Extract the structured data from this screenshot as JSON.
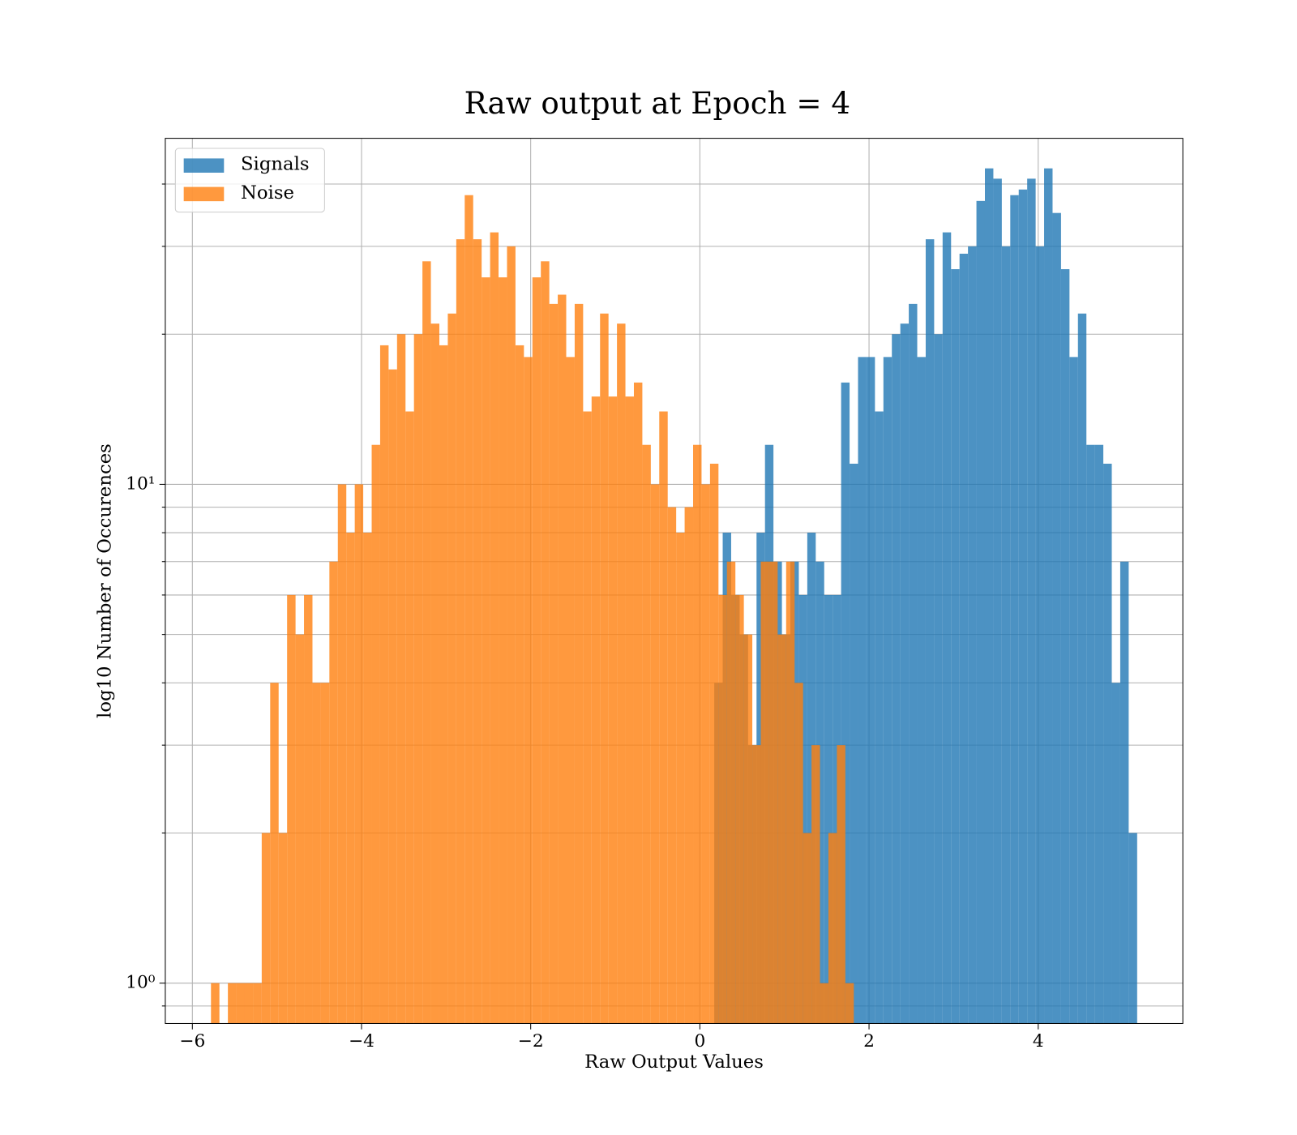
{
  "chart_data": {
    "type": "histogram",
    "title": "Raw output at Epoch = 4",
    "xlabel": "Raw Output Values",
    "ylabel": "log10 Number of Occurences",
    "xlim": [
      -6.32,
      5.71
    ],
    "ylim": [
      0.83,
      49.4
    ],
    "yscale": "log",
    "grid": true,
    "legend": "upper left",
    "xticks": [
      {
        "value": -6,
        "label": "−6"
      },
      {
        "value": -4,
        "label": "−4"
      },
      {
        "value": -2,
        "label": "−2"
      },
      0,
      2,
      4
    ],
    "yticks": [
      {
        "value": 1,
        "label": "10⁰"
      },
      {
        "value": 10,
        "label": "10¹"
      }
    ],
    "yminorticks": [
      0.9,
      2,
      3,
      4,
      5,
      6,
      7,
      8,
      9,
      20,
      30,
      40
    ],
    "series": [
      {
        "name": "Signals",
        "color": "#1f77b4",
        "bins": [
          0.17,
          0.27,
          0.37,
          0.47,
          0.57,
          0.67,
          0.77,
          0.87,
          0.97,
          1.07,
          1.17,
          1.27,
          1.37,
          1.47,
          1.57,
          1.67,
          1.77,
          1.87,
          1.97,
          2.07,
          2.17,
          2.27,
          2.37,
          2.47,
          2.57,
          2.67,
          2.77,
          2.87,
          2.97,
          3.07,
          3.17,
          3.27,
          3.37,
          3.47,
          3.57,
          3.67,
          3.77,
          3.87,
          3.97,
          4.07,
          4.17,
          4.27,
          4.37,
          4.47,
          4.57,
          4.67,
          4.77,
          4.87,
          4.97,
          5.07,
          5.17
        ],
        "values": [
          4,
          8,
          6,
          5,
          3,
          8,
          12,
          7,
          5,
          7,
          6,
          8,
          7,
          6,
          6,
          16,
          11,
          18,
          18,
          14,
          18,
          20,
          21,
          23,
          18,
          31,
          20,
          32,
          27,
          29,
          30,
          37,
          43,
          41,
          30,
          38,
          39,
          41,
          30,
          43,
          35,
          27,
          18,
          22,
          12,
          12,
          11,
          4,
          7,
          2
        ]
      },
      {
        "name": "Noise",
        "color": "#ff7f0e",
        "bins": [
          -5.78,
          -5.68,
          -5.58,
          -5.48,
          -5.38,
          -5.28,
          -5.18,
          -5.08,
          -4.98,
          -4.88,
          -4.78,
          -4.68,
          -4.58,
          -4.48,
          -4.38,
          -4.28,
          -4.18,
          -4.08,
          -3.98,
          -3.88,
          -3.78,
          -3.68,
          -3.58,
          -3.48,
          -3.38,
          -3.28,
          -3.18,
          -3.08,
          -2.98,
          -2.88,
          -2.78,
          -2.68,
          -2.58,
          -2.48,
          -2.38,
          -2.28,
          -2.18,
          -2.08,
          -1.98,
          -1.88,
          -1.78,
          -1.68,
          -1.58,
          -1.48,
          -1.38,
          -1.28,
          -1.18,
          -1.08,
          -0.98,
          -0.88,
          -0.78,
          -0.68,
          -0.58,
          -0.48,
          -0.38,
          -0.28,
          -0.18,
          -0.08,
          0.02,
          0.12,
          0.22,
          0.32,
          0.42,
          0.52,
          0.62,
          0.72,
          0.82,
          0.92,
          1.02,
          1.12,
          1.22,
          1.32,
          1.42,
          1.52,
          1.62,
          1.72,
          1.82
        ],
        "values": [
          1,
          0,
          1,
          1,
          1,
          1,
          2,
          4,
          2,
          6,
          5,
          6,
          4,
          4,
          7,
          10,
          8,
          10,
          8,
          12,
          19,
          17,
          20,
          14,
          20,
          28,
          21,
          19,
          22,
          31,
          38,
          31,
          26,
          32,
          26,
          30,
          19,
          18,
          26,
          28,
          23,
          24,
          18,
          23,
          14,
          15,
          22,
          15,
          21,
          15,
          16,
          12,
          10,
          14,
          9,
          8,
          9,
          12,
          10,
          11,
          6,
          7,
          6,
          5,
          3,
          7,
          7,
          5,
          7,
          4,
          2,
          3,
          1,
          2,
          3,
          1
        ]
      }
    ]
  }
}
